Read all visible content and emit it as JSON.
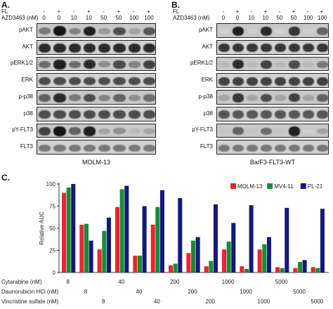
{
  "panelA": {
    "letter": "A.",
    "fl_label": "FL",
    "azd_label": "AZD3463 (nM)",
    "fl_signs": [
      "-",
      "+",
      "-",
      "+",
      "-",
      "+",
      "-",
      "+"
    ],
    "azd_values": [
      "0",
      "0",
      "10",
      "10",
      "50",
      "50",
      "100",
      "100"
    ],
    "rows": [
      "pAKT",
      "AKT",
      "pERK1/2",
      "ERK",
      "p-p38",
      "p38",
      "pY-FLT3",
      "FLT3"
    ],
    "caption": "MOLM-13"
  },
  "panelB": {
    "letter": "B.",
    "fl_label": "FL",
    "azd_label": "AZD3463 (nM)",
    "fl_signs": [
      "-",
      "+",
      "-",
      "+",
      "-",
      "+",
      "-",
      "+"
    ],
    "azd_values": [
      "0",
      "0",
      "10",
      "10",
      "50",
      "50",
      "100",
      "100"
    ],
    "rows": [
      "pAKT",
      "AKT",
      "pERK1/2",
      "ERK",
      "p-p38",
      "p38",
      "pY-FLT3",
      "FLT3"
    ],
    "caption": "Ba/F3-FLT3-WT"
  },
  "panelC": {
    "letter": "C.",
    "chart_data": {
      "type": "bar",
      "ylabel": "Relative AUC",
      "ylim": [
        0,
        100
      ],
      "yticks": [
        0,
        25,
        50,
        75,
        100
      ],
      "series": [
        {
          "name": "MOLM-13",
          "color": "#e8262b",
          "values": [
            90,
            54,
            26,
            74,
            19,
            54,
            8,
            22,
            7,
            26,
            7,
            26,
            6,
            5,
            6
          ]
        },
        {
          "name": "MV4-11",
          "color": "#1a8a3a",
          "values": [
            96,
            55,
            47,
            94,
            19,
            74,
            10,
            36,
            13,
            35,
            4,
            32,
            5,
            12,
            5
          ]
        },
        {
          "name": "PL-21",
          "color": "#141878",
          "values": [
            100,
            36,
            62,
            98,
            75,
            93,
            84,
            40,
            77,
            56,
            76,
            40,
            73,
            14,
            72
          ]
        }
      ],
      "row_labels": [
        "Cytarabine (nM)",
        "Daunorubicin HCl (nM)",
        "Vincristine sulfate (nM)"
      ],
      "groups": [
        {
          "row": 0,
          "label": "8"
        },
        {
          "row": 1,
          "label": "8"
        },
        {
          "row": 2,
          "label": "8"
        },
        {
          "row": 0,
          "label": "40"
        },
        {
          "row": 1,
          "label": "40"
        },
        {
          "row": 2,
          "label": "40"
        },
        {
          "row": 0,
          "label": "200"
        },
        {
          "row": 1,
          "label": "200"
        },
        {
          "row": 2,
          "label": "200"
        },
        {
          "row": 0,
          "label": "1000"
        },
        {
          "row": 1,
          "label": "1000"
        },
        {
          "row": 2,
          "label": "1000"
        },
        {
          "row": 0,
          "label": "5000"
        },
        {
          "row": 1,
          "label": "5000"
        },
        {
          "row": 2,
          "label": "5000"
        }
      ],
      "legend_position": "top-right"
    }
  },
  "blot_intensity": {
    "A": [
      [
        0.5,
        0.95,
        0.45,
        0.9,
        0.35,
        0.7,
        0.3,
        0.65
      ],
      [
        0.85,
        0.85,
        0.85,
        0.85,
        0.85,
        0.85,
        0.85,
        0.85
      ],
      [
        0.55,
        0.9,
        0.55,
        0.85,
        0.4,
        0.7,
        0.45,
        0.75
      ],
      [
        0.7,
        0.7,
        0.7,
        0.7,
        0.7,
        0.7,
        0.7,
        0.7
      ],
      [
        0.6,
        0.85,
        0.5,
        0.7,
        0.45,
        0.6,
        0.4,
        0.55
      ],
      [
        0.7,
        0.7,
        0.7,
        0.7,
        0.7,
        0.7,
        0.7,
        0.7
      ],
      [
        0.75,
        0.95,
        0.6,
        0.9,
        0.3,
        0.4,
        0.2,
        0.3
      ],
      [
        0.5,
        0.5,
        0.5,
        0.5,
        0.5,
        0.5,
        0.5,
        0.5
      ]
    ],
    "B": [
      [
        0.1,
        0.9,
        0.1,
        0.85,
        0.1,
        0.8,
        0.1,
        0.6
      ],
      [
        0.8,
        0.8,
        0.8,
        0.8,
        0.8,
        0.8,
        0.8,
        0.8
      ],
      [
        0.2,
        0.85,
        0.2,
        0.75,
        0.2,
        0.7,
        0.2,
        0.5
      ],
      [
        0.75,
        0.75,
        0.75,
        0.75,
        0.75,
        0.75,
        0.75,
        0.75
      ],
      [
        0.3,
        0.8,
        0.3,
        0.7,
        0.3,
        0.75,
        0.3,
        0.6
      ],
      [
        0.65,
        0.65,
        0.65,
        0.65,
        0.65,
        0.65,
        0.65,
        0.65
      ],
      [
        0.15,
        0.6,
        0.15,
        0.55,
        0.15,
        0.9,
        0.1,
        0.3
      ],
      [
        0.5,
        0.5,
        0.5,
        0.5,
        0.5,
        0.5,
        0.5,
        0.5
      ]
    ]
  }
}
